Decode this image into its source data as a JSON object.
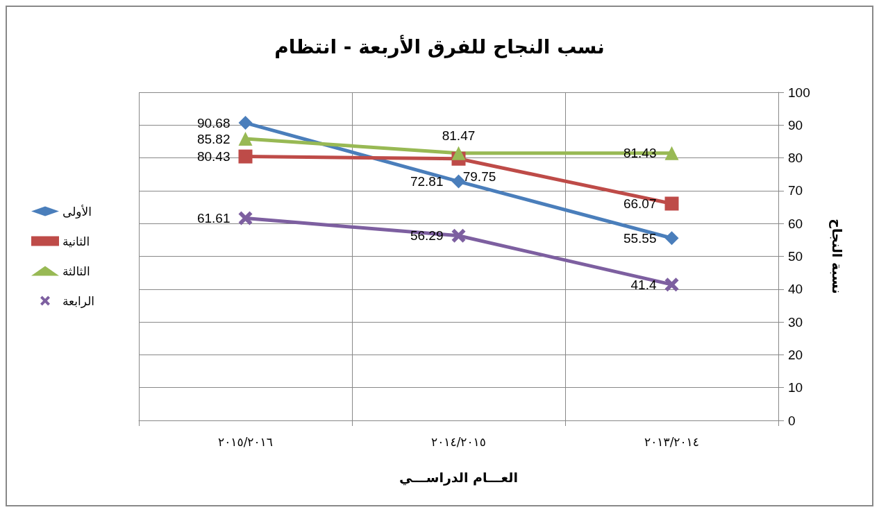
{
  "chart_data": {
    "type": "line",
    "title": "نسب النجاح للفرق الأربعة - انتظام",
    "xlabel": "العـــام الدراســـي",
    "ylabel": "نسبة النجاح",
    "categories": [
      "٢٠١٥/٢٠١٦",
      "٢٠١٤/٢٠١٥",
      "٢٠١٣/٢٠١٤"
    ],
    "series": [
      {
        "name": "الأولى",
        "color": "#4a7ebb",
        "marker": "diamond",
        "values": [
          90.68,
          72.81,
          55.55
        ]
      },
      {
        "name": "الثانية",
        "color": "#be4b48",
        "marker": "square",
        "values": [
          80.43,
          79.75,
          66.07
        ]
      },
      {
        "name": "الثالثة",
        "color": "#98b954",
        "marker": "triangle",
        "values": [
          85.82,
          81.47,
          81.43
        ]
      },
      {
        "name": "الرابعة",
        "color": "#7d5fa0",
        "marker": "cross",
        "values": [
          61.61,
          56.29,
          41.4
        ]
      }
    ],
    "ylim": [
      0,
      100
    ],
    "yticks": [
      0,
      10,
      20,
      30,
      40,
      50,
      60,
      70,
      80,
      90,
      100
    ],
    "grid": true,
    "legend": "left",
    "data_labels": true
  }
}
